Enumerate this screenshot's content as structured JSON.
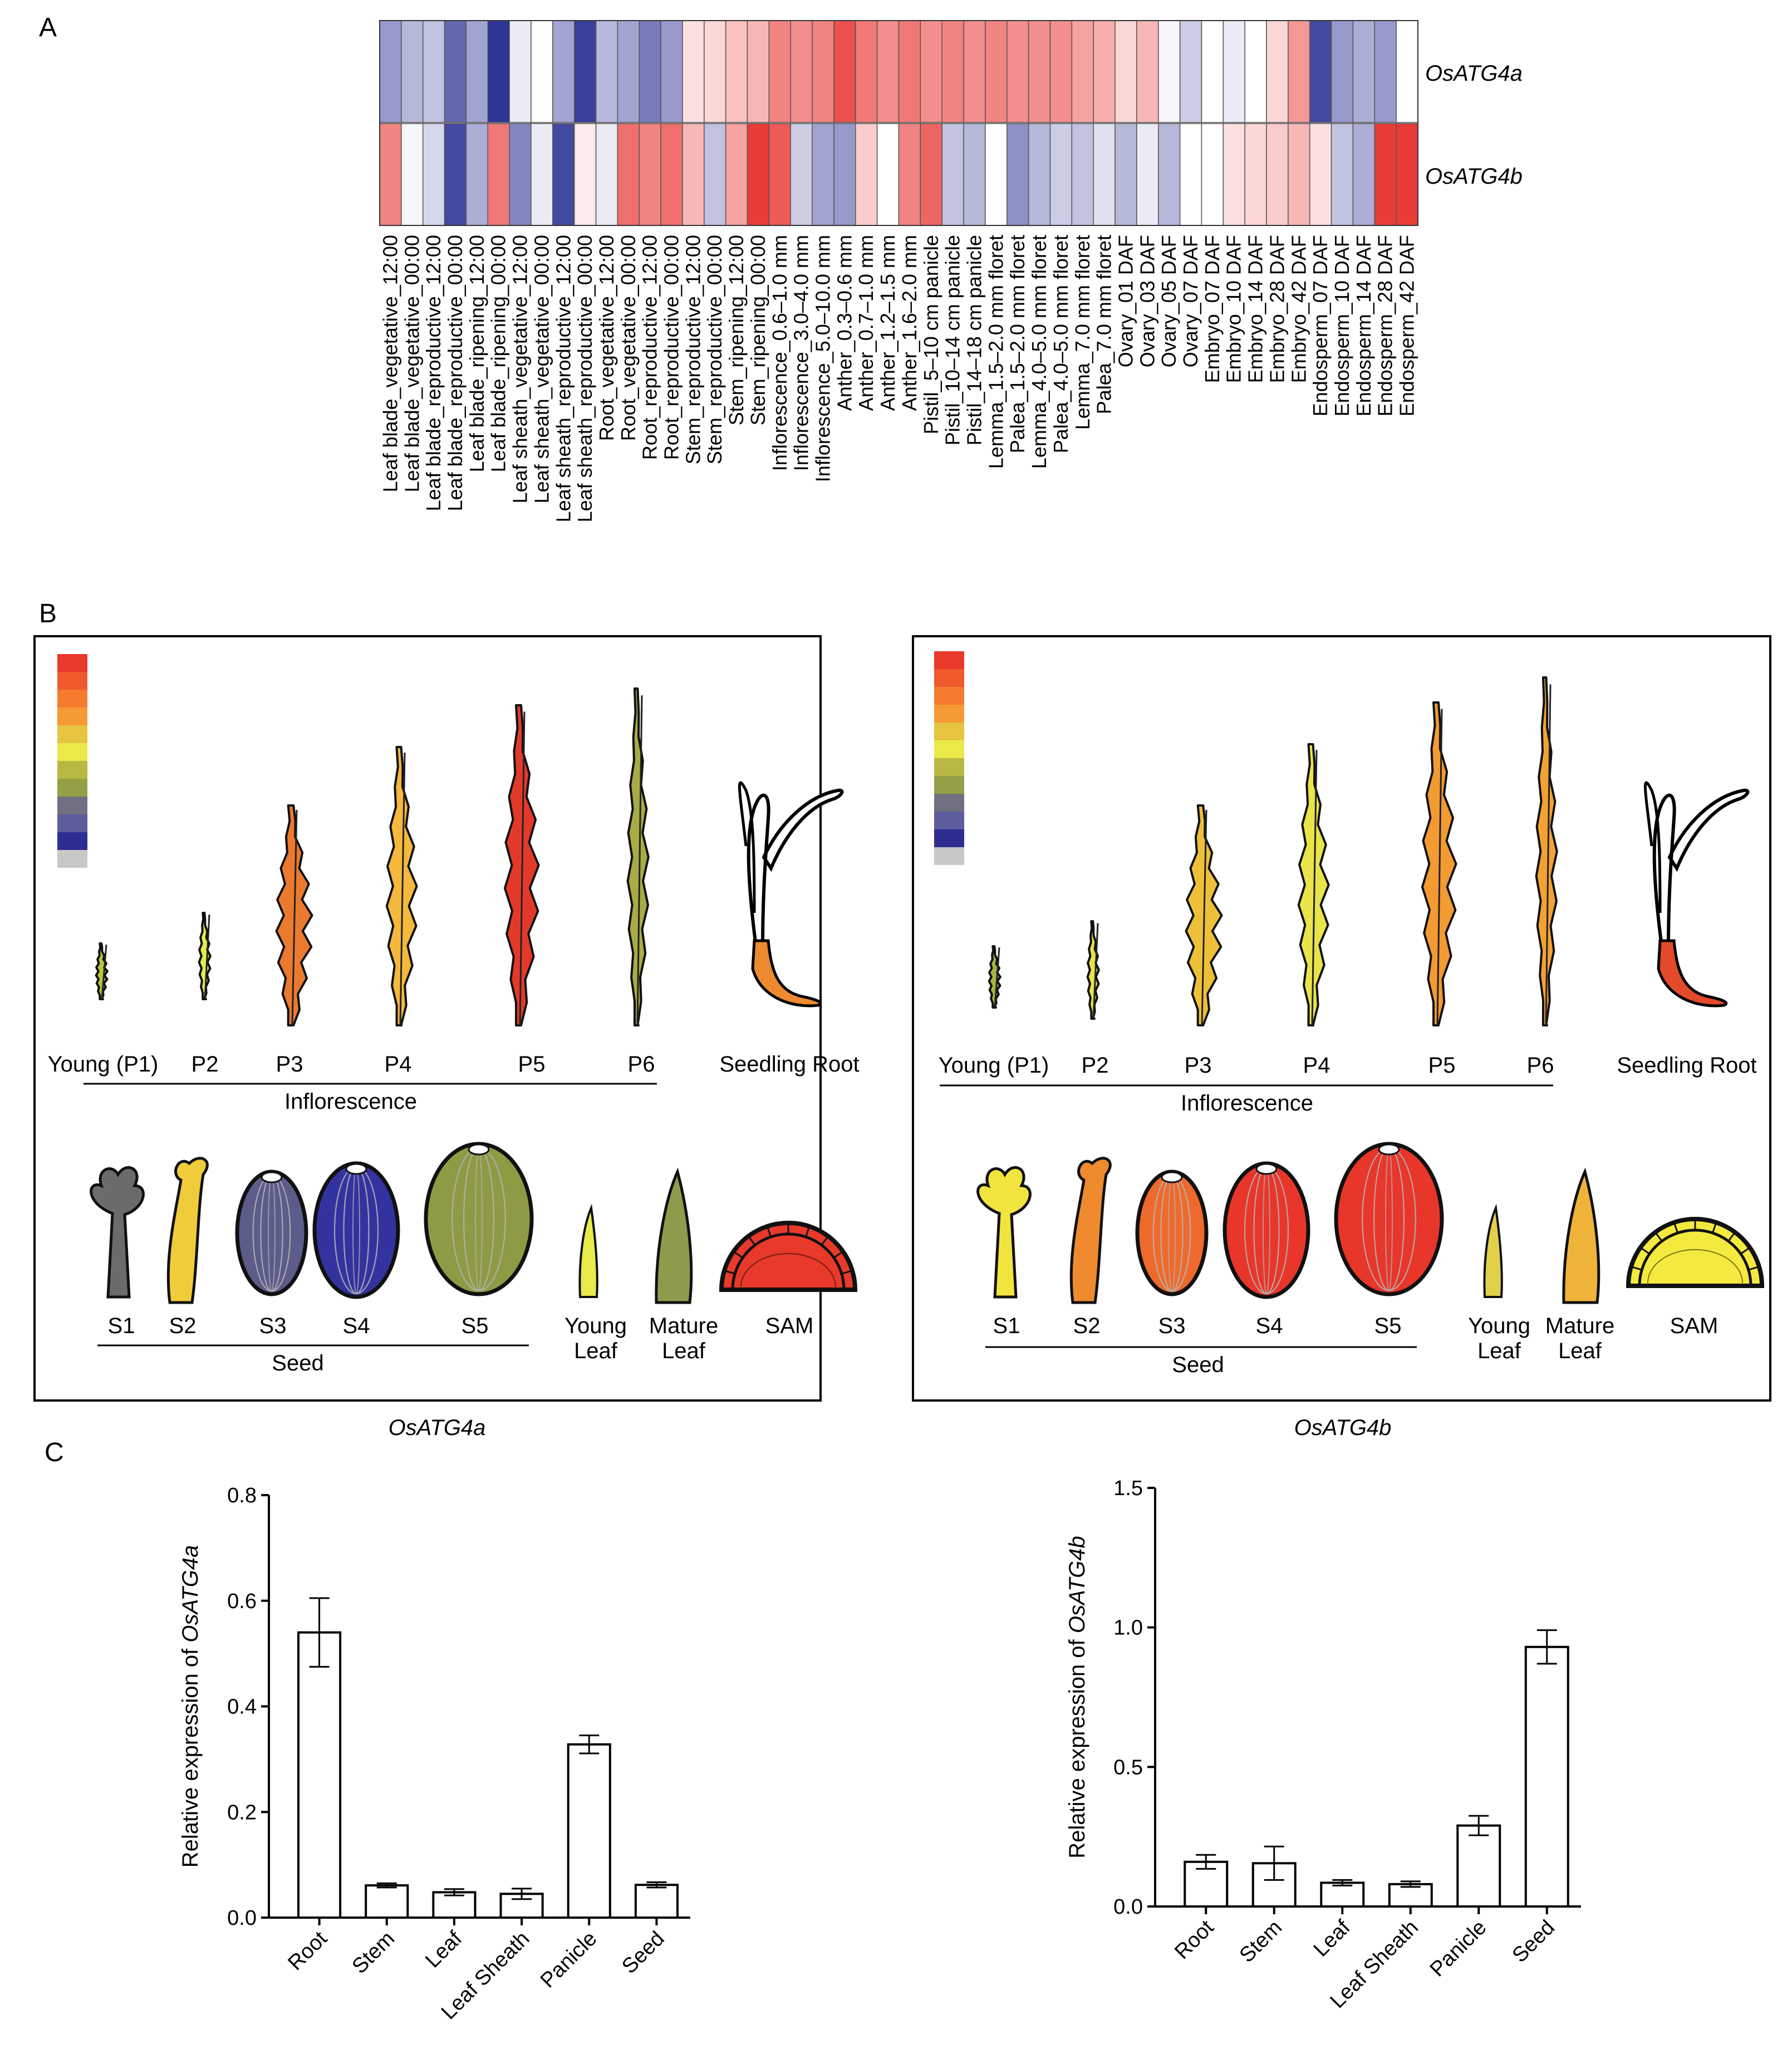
{
  "panels": {
    "a": "A",
    "b": "B",
    "c": "C"
  },
  "chart_data": [
    {
      "type": "heatmap",
      "title": "",
      "rows": [
        "OsATG4a",
        "OsATG4b"
      ],
      "columns": [
        "Leaf blade_vegetative_12:00",
        "Leaf blade_vegetative_00:00",
        "Leaf blade_reproductive_12:00",
        "Leaf blade_reproductive_00:00",
        "Leaf blade_ripening_12:00",
        "Leaf blade_ripening_00:00",
        "Leaf sheath_vegetative_12:00",
        "Leaf sheath_vegetative_00:00",
        "Leaf sheath_reproductive_12:00",
        "Leaf sheath_reproductive_00:00",
        "Root_vegetative_12:00",
        "Root_vegetative_00:00",
        "Root_reproductive_12:00",
        "Root_reproductive_00:00",
        "Stem_reproductive_12:00",
        "Stem_reproductive_00:00",
        "Stem_ripening_12:00",
        "Stem_ripening_00:00",
        "Inflorescence_0.6–1.0 mm",
        "Inflorescence_3.0–4.0 mm",
        "Inflorescence_5.0–10.0 mm",
        "Anther_0.3–0.6 mm",
        "Anther_0.7–1.0 mm",
        "Anther_1.2–1.5 mm",
        "Anther_1.6–2.0 mm",
        "Pistil_5–10 cm panicle",
        "Pistil_10–14 cm panicle",
        "Pistil_14–18 cm panicle",
        "Lemma_1.5–2.0 mm floret",
        "Palea_1.5–2.0 mm floret",
        "Lemma_4.0–5.0 mm floret",
        "Palea_4.0–5.0 mm floret",
        "Lemma_7.0 mm floret",
        "Palea_7.0 mm floret",
        "Ovary_01 DAF",
        "Ovary_03 DAF",
        "Ovary_05 DAF",
        "Ovary_07 DAF",
        "Embryo_07 DAF",
        "Embryo_10 DAF",
        "Embryo_14 DAF",
        "Embryo_28 DAF",
        "Embryo_42 DAF",
        "Endosperm_07 DAF",
        "Endosperm_10 DAF",
        "Endosperm_14 DAF",
        "Endosperm_28 DAF",
        "Endosperm_42 DAF"
      ],
      "values": [
        [
          -0.5,
          -0.35,
          -0.3,
          -0.75,
          -0.45,
          -1.0,
          -0.1,
          0.0,
          -0.45,
          -0.95,
          -0.35,
          -0.45,
          -0.65,
          -0.5,
          0.15,
          0.2,
          0.3,
          0.35,
          0.6,
          0.55,
          0.6,
          0.85,
          0.65,
          0.55,
          0.65,
          0.55,
          0.6,
          0.55,
          0.6,
          0.55,
          0.55,
          0.55,
          0.45,
          0.4,
          0.2,
          0.35,
          -0.05,
          -0.25,
          0.0,
          -0.1,
          0.0,
          0.2,
          0.5,
          -0.9,
          -0.5,
          -0.4,
          -0.5,
          0.0
        ],
        [
          0.6,
          -0.05,
          -0.2,
          -0.9,
          -0.4,
          0.65,
          -0.6,
          -0.1,
          -0.9,
          0.1,
          -0.1,
          0.7,
          0.6,
          0.7,
          0.35,
          -0.3,
          0.45,
          0.95,
          0.8,
          -0.25,
          -0.45,
          -0.5,
          0.25,
          0.0,
          0.6,
          0.75,
          -0.3,
          -0.35,
          0.0,
          -0.55,
          -0.35,
          -0.25,
          -0.3,
          -0.15,
          -0.35,
          -0.1,
          -0.35,
          0.0,
          0.0,
          0.15,
          0.2,
          0.25,
          0.35,
          0.15,
          -0.3,
          -0.4,
          0.95,
          0.95
        ]
      ],
      "range": [
        -1,
        1
      ],
      "colors": {
        "low": "#2f3596",
        "mid": "#ffffff",
        "high": "#e8312d"
      }
    },
    {
      "type": "bar",
      "gene": "OsATG4a",
      "ylabel_prefix": "Relative expression of ",
      "ylabel_gene": "OsATG4a",
      "categories": [
        "Root",
        "Stem",
        "Leaf",
        "Leaf Sheath",
        "Panicle",
        "Seed"
      ],
      "values": [
        0.54,
        0.061,
        0.048,
        0.045,
        0.328,
        0.062
      ],
      "errors": [
        0.065,
        0.004,
        0.006,
        0.01,
        0.017,
        0.005
      ],
      "ylim": [
        0,
        0.8
      ],
      "ticks": [
        "0.0",
        "0.2",
        "0.4",
        "0.6",
        "0.8"
      ]
    },
    {
      "type": "bar",
      "gene": "OsATG4b",
      "ylabel_prefix": "Relative expression of ",
      "ylabel_gene": "OsATG4b",
      "categories": [
        "Root",
        "Stem",
        "Leaf",
        "Leaf Sheath",
        "Panicle",
        "Seed"
      ],
      "values": [
        0.16,
        0.155,
        0.085,
        0.08,
        0.29,
        0.93
      ],
      "errors": [
        0.025,
        0.06,
        0.01,
        0.01,
        0.035,
        0.06
      ],
      "ylim": [
        0,
        1.5
      ],
      "ticks": [
        "0.0",
        "0.5",
        "1.0",
        "1.5"
      ]
    }
  ],
  "eFP": {
    "scale_colors": [
      "#e8392b",
      "#ee5a2c",
      "#f47a2e",
      "#f59b35",
      "#e7c43f",
      "#eae94a",
      "#b7b943",
      "#95a046",
      "#707080",
      "#5d5d9e",
      "#2e2e90",
      "#c8c8c8"
    ],
    "inflorescence_label": "Inflorescence",
    "seed_label": "Seed",
    "seedling_root_label": "Seedling Root",
    "panicle_labels": [
      "Young (P1)",
      "P2",
      "P3",
      "P4",
      "P5",
      "P6"
    ],
    "seed_labels": [
      "S1",
      "S2",
      "S3",
      "S4",
      "S5"
    ],
    "leaf_labels": [
      [
        "Young",
        "Leaf"
      ],
      [
        "Mature",
        "Leaf"
      ]
    ],
    "sam_label": "SAM",
    "panels": [
      {
        "gene": "OsATG4a",
        "panicle_colors": [
          "#b8c53a",
          "#e6ec4a",
          "#ec7a2e",
          "#f4b93c",
          "#e3392b",
          "#a9ab45"
        ],
        "root_color": "#ec8a30",
        "seed_colors": [
          "#6b6b6b",
          "#f0cc3a",
          "#5c5c8a",
          "#3333a0",
          "#8f9a45"
        ],
        "young_leaf_color": "#e8ea4a",
        "mature_leaf_color": "#8f9a4d",
        "sam_color": "#e8392b"
      },
      {
        "gene": "OsATG4b",
        "panicle_colors": [
          "#a8b43e",
          "#e8e24a",
          "#eec03a",
          "#e8e44a",
          "#f39a32",
          "#f4a134"
        ],
        "root_color": "#e34a2b",
        "seed_colors": [
          "#f2e43e",
          "#f08a2e",
          "#ee6a2c",
          "#e8362b",
          "#e8362b"
        ],
        "young_leaf_color": "#e2d04a",
        "mature_leaf_color": "#f0b33a",
        "sam_color": "#f4ea3f"
      }
    ]
  }
}
